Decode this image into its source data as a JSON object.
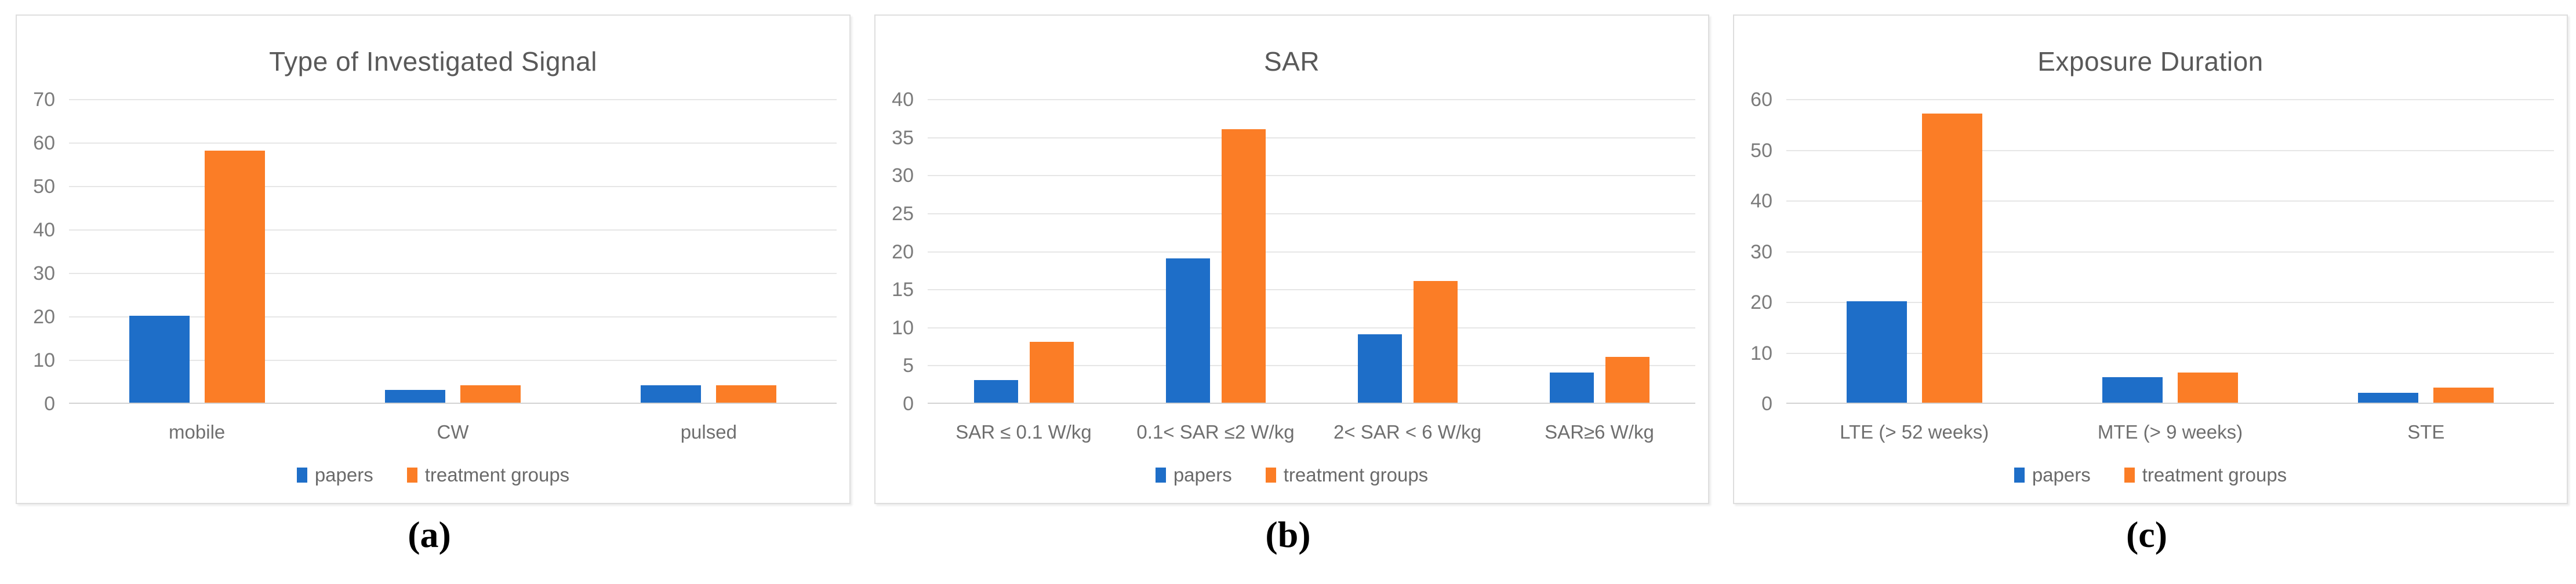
{
  "figure": {
    "background": "#ffffff",
    "series_colors": {
      "papers": "#1e6ec8",
      "treatment_groups": "#fb7d26"
    },
    "grid_color": "#e6e6e6",
    "axis_color": "#d2d2d2",
    "title_color": "#595959",
    "label_color": "#6f6f6f"
  },
  "chart_data": [
    {
      "type": "bar",
      "title": "Type of Investigated Signal",
      "caption": "(a)",
      "categories": [
        "mobile",
        "CW",
        "pulsed"
      ],
      "series": [
        {
          "name": "papers",
          "values": [
            20,
            3,
            4
          ]
        },
        {
          "name": "treatment groups",
          "values": [
            58,
            4,
            4
          ]
        }
      ],
      "xlabel": "",
      "ylabel": "",
      "ylim": [
        0,
        70
      ],
      "ytick_step": 10,
      "grid": true,
      "legend_position": "bottom",
      "colors": {
        "papers": "#1e6ec8",
        "treatment groups": "#fb7d26"
      }
    },
    {
      "type": "bar",
      "title": "SAR",
      "caption": "(b)",
      "categories": [
        "SAR ≤ 0.1 W/kg",
        "0.1< SAR ≤2 W/kg",
        "2< SAR < 6 W/kg",
        "SAR≥6 W/kg"
      ],
      "series": [
        {
          "name": "papers",
          "values": [
            3,
            19,
            9,
            4
          ]
        },
        {
          "name": "treatment groups",
          "values": [
            8,
            36,
            16,
            6
          ]
        }
      ],
      "xlabel": "",
      "ylabel": "",
      "ylim": [
        0,
        40
      ],
      "ytick_step": 5,
      "grid": true,
      "legend_position": "bottom",
      "colors": {
        "papers": "#1e6ec8",
        "treatment groups": "#fb7d26"
      }
    },
    {
      "type": "bar",
      "title": "Exposure Duration",
      "caption": "(c)",
      "categories": [
        "LTE (> 52 weeks)",
        "MTE (> 9 weeks)",
        "STE"
      ],
      "series": [
        {
          "name": "papers",
          "values": [
            20,
            5,
            2
          ]
        },
        {
          "name": "treatment groups",
          "values": [
            57,
            6,
            3
          ]
        }
      ],
      "xlabel": "",
      "ylabel": "",
      "ylim": [
        0,
        60
      ],
      "ytick_step": 10,
      "grid": true,
      "legend_position": "bottom",
      "colors": {
        "papers": "#1e6ec8",
        "treatment groups": "#fb7d26"
      }
    }
  ]
}
